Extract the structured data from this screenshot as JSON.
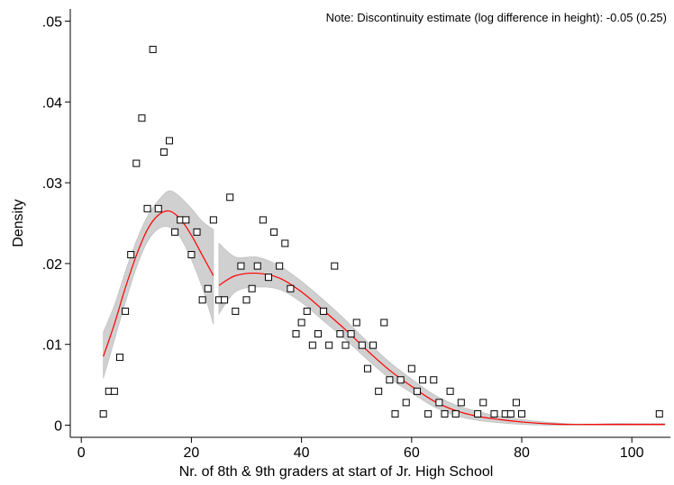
{
  "chart_data": {
    "type": "scatter",
    "title": "",
    "xlabel": "Nr. of 8th & 9th graders at start of Jr. High School",
    "ylabel": "Density",
    "note": "Note: Discontinuity estimate (log difference in height): -0.05 (0.25)",
    "xlim": [
      -2,
      107
    ],
    "ylim": [
      -0.0015,
      0.0515
    ],
    "x_ticks": [
      0,
      20,
      40,
      60,
      80,
      100
    ],
    "x_tick_labels": [
      "0",
      "20",
      "40",
      "60",
      "80",
      "100"
    ],
    "y_ticks": [
      0,
      0.01,
      0.02,
      0.03,
      0.04,
      0.05
    ],
    "y_tick_labels": [
      "0",
      ".01",
      ".02",
      ".03",
      ".04",
      ".05"
    ],
    "grid": false,
    "legend": "none",
    "cutoff": 24.5,
    "colors": {
      "fit_line": "#ff0000",
      "ci_band": "#d0d0d0",
      "markers": "#000000"
    },
    "points": [
      [
        4,
        0.0014
      ],
      [
        5,
        0.0042
      ],
      [
        6,
        0.0042
      ],
      [
        7,
        0.0084
      ],
      [
        8,
        0.0141
      ],
      [
        9,
        0.0211
      ],
      [
        10,
        0.0324
      ],
      [
        11,
        0.038
      ],
      [
        12,
        0.0268
      ],
      [
        13,
        0.0465
      ],
      [
        14,
        0.0268
      ],
      [
        15,
        0.0338
      ],
      [
        16,
        0.0352
      ],
      [
        17,
        0.0239
      ],
      [
        18,
        0.0254
      ],
      [
        19,
        0.0254
      ],
      [
        20,
        0.0211
      ],
      [
        21,
        0.0239
      ],
      [
        22,
        0.0155
      ],
      [
        23,
        0.0169
      ],
      [
        24,
        0.0254
      ],
      [
        25,
        0.0155
      ],
      [
        26,
        0.0155
      ],
      [
        27,
        0.0282
      ],
      [
        28,
        0.0141
      ],
      [
        29,
        0.0197
      ],
      [
        30,
        0.0155
      ],
      [
        31,
        0.0169
      ],
      [
        32,
        0.0197
      ],
      [
        33,
        0.0254
      ],
      [
        34,
        0.0183
      ],
      [
        35,
        0.0239
      ],
      [
        36,
        0.0197
      ],
      [
        37,
        0.0225
      ],
      [
        38,
        0.0169
      ],
      [
        39,
        0.0113
      ],
      [
        40,
        0.0127
      ],
      [
        41,
        0.0141
      ],
      [
        42,
        0.0099
      ],
      [
        43,
        0.0113
      ],
      [
        44,
        0.0141
      ],
      [
        45,
        0.0099
      ],
      [
        46,
        0.0197
      ],
      [
        47,
        0.0113
      ],
      [
        48,
        0.0099
      ],
      [
        49,
        0.0113
      ],
      [
        50,
        0.0127
      ],
      [
        51,
        0.0099
      ],
      [
        52,
        0.007
      ],
      [
        53,
        0.0099
      ],
      [
        54,
        0.0042
      ],
      [
        55,
        0.0127
      ],
      [
        56,
        0.0056
      ],
      [
        57,
        0.0014
      ],
      [
        58,
        0.0056
      ],
      [
        59,
        0.0028
      ],
      [
        60,
        0.007
      ],
      [
        61,
        0.0042
      ],
      [
        62,
        0.0056
      ],
      [
        63,
        0.0014
      ],
      [
        64,
        0.0056
      ],
      [
        65,
        0.0028
      ],
      [
        66,
        0.0014
      ],
      [
        67,
        0.0042
      ],
      [
        68,
        0.0014
      ],
      [
        69,
        0.0028
      ],
      [
        72,
        0.0014
      ],
      [
        73,
        0.0028
      ],
      [
        75,
        0.0014
      ],
      [
        77,
        0.0014
      ],
      [
        78,
        0.0014
      ],
      [
        79,
        0.0028
      ],
      [
        80,
        0.0014
      ],
      [
        105,
        0.0014
      ]
    ],
    "series": [
      {
        "segment": "left",
        "x": [
          4,
          6,
          8,
          10,
          12,
          14,
          16,
          18,
          20,
          22,
          24
        ],
        "fit": [
          0.0085,
          0.0125,
          0.017,
          0.021,
          0.0242,
          0.026,
          0.0265,
          0.0255,
          0.0235,
          0.021,
          0.0185
        ],
        "ci_low": [
          0.0058,
          0.0105,
          0.0152,
          0.0195,
          0.0227,
          0.0243,
          0.0245,
          0.0232,
          0.0205,
          0.017,
          0.0125
        ],
        "ci_high": [
          0.0115,
          0.0148,
          0.019,
          0.0228,
          0.0258,
          0.0278,
          0.029,
          0.0282,
          0.0268,
          0.0252,
          0.0242
        ]
      },
      {
        "segment": "right",
        "x": [
          25,
          28,
          32,
          36,
          40,
          44,
          48,
          52,
          56,
          60,
          64,
          68,
          72,
          76,
          80,
          84,
          88,
          92,
          96,
          100,
          106
        ],
        "fit": [
          0.0173,
          0.0185,
          0.0188,
          0.0182,
          0.0165,
          0.0142,
          0.0118,
          0.0092,
          0.0068,
          0.0048,
          0.003,
          0.0018,
          0.0011,
          0.0007,
          0.0004,
          0.0002,
          0.0001,
          0.0001,
          0.0001,
          0.0001,
          0.0001
        ],
        "ci_low": [
          0.0138,
          0.0165,
          0.0171,
          0.0168,
          0.0152,
          0.0129,
          0.0106,
          0.0081,
          0.0058,
          0.004,
          0.0023,
          0.0012,
          0.0006,
          0.0003,
          0.0001,
          0.0,
          0.0,
          0.0,
          0.0,
          0.0,
          0.0
        ],
        "ci_high": [
          0.0225,
          0.0208,
          0.0208,
          0.0197,
          0.0178,
          0.0155,
          0.013,
          0.0103,
          0.0078,
          0.0057,
          0.0038,
          0.0025,
          0.0017,
          0.0011,
          0.0007,
          0.0004,
          0.0002,
          0.0001,
          0.0002,
          0.0002,
          0.0002
        ]
      }
    ]
  }
}
